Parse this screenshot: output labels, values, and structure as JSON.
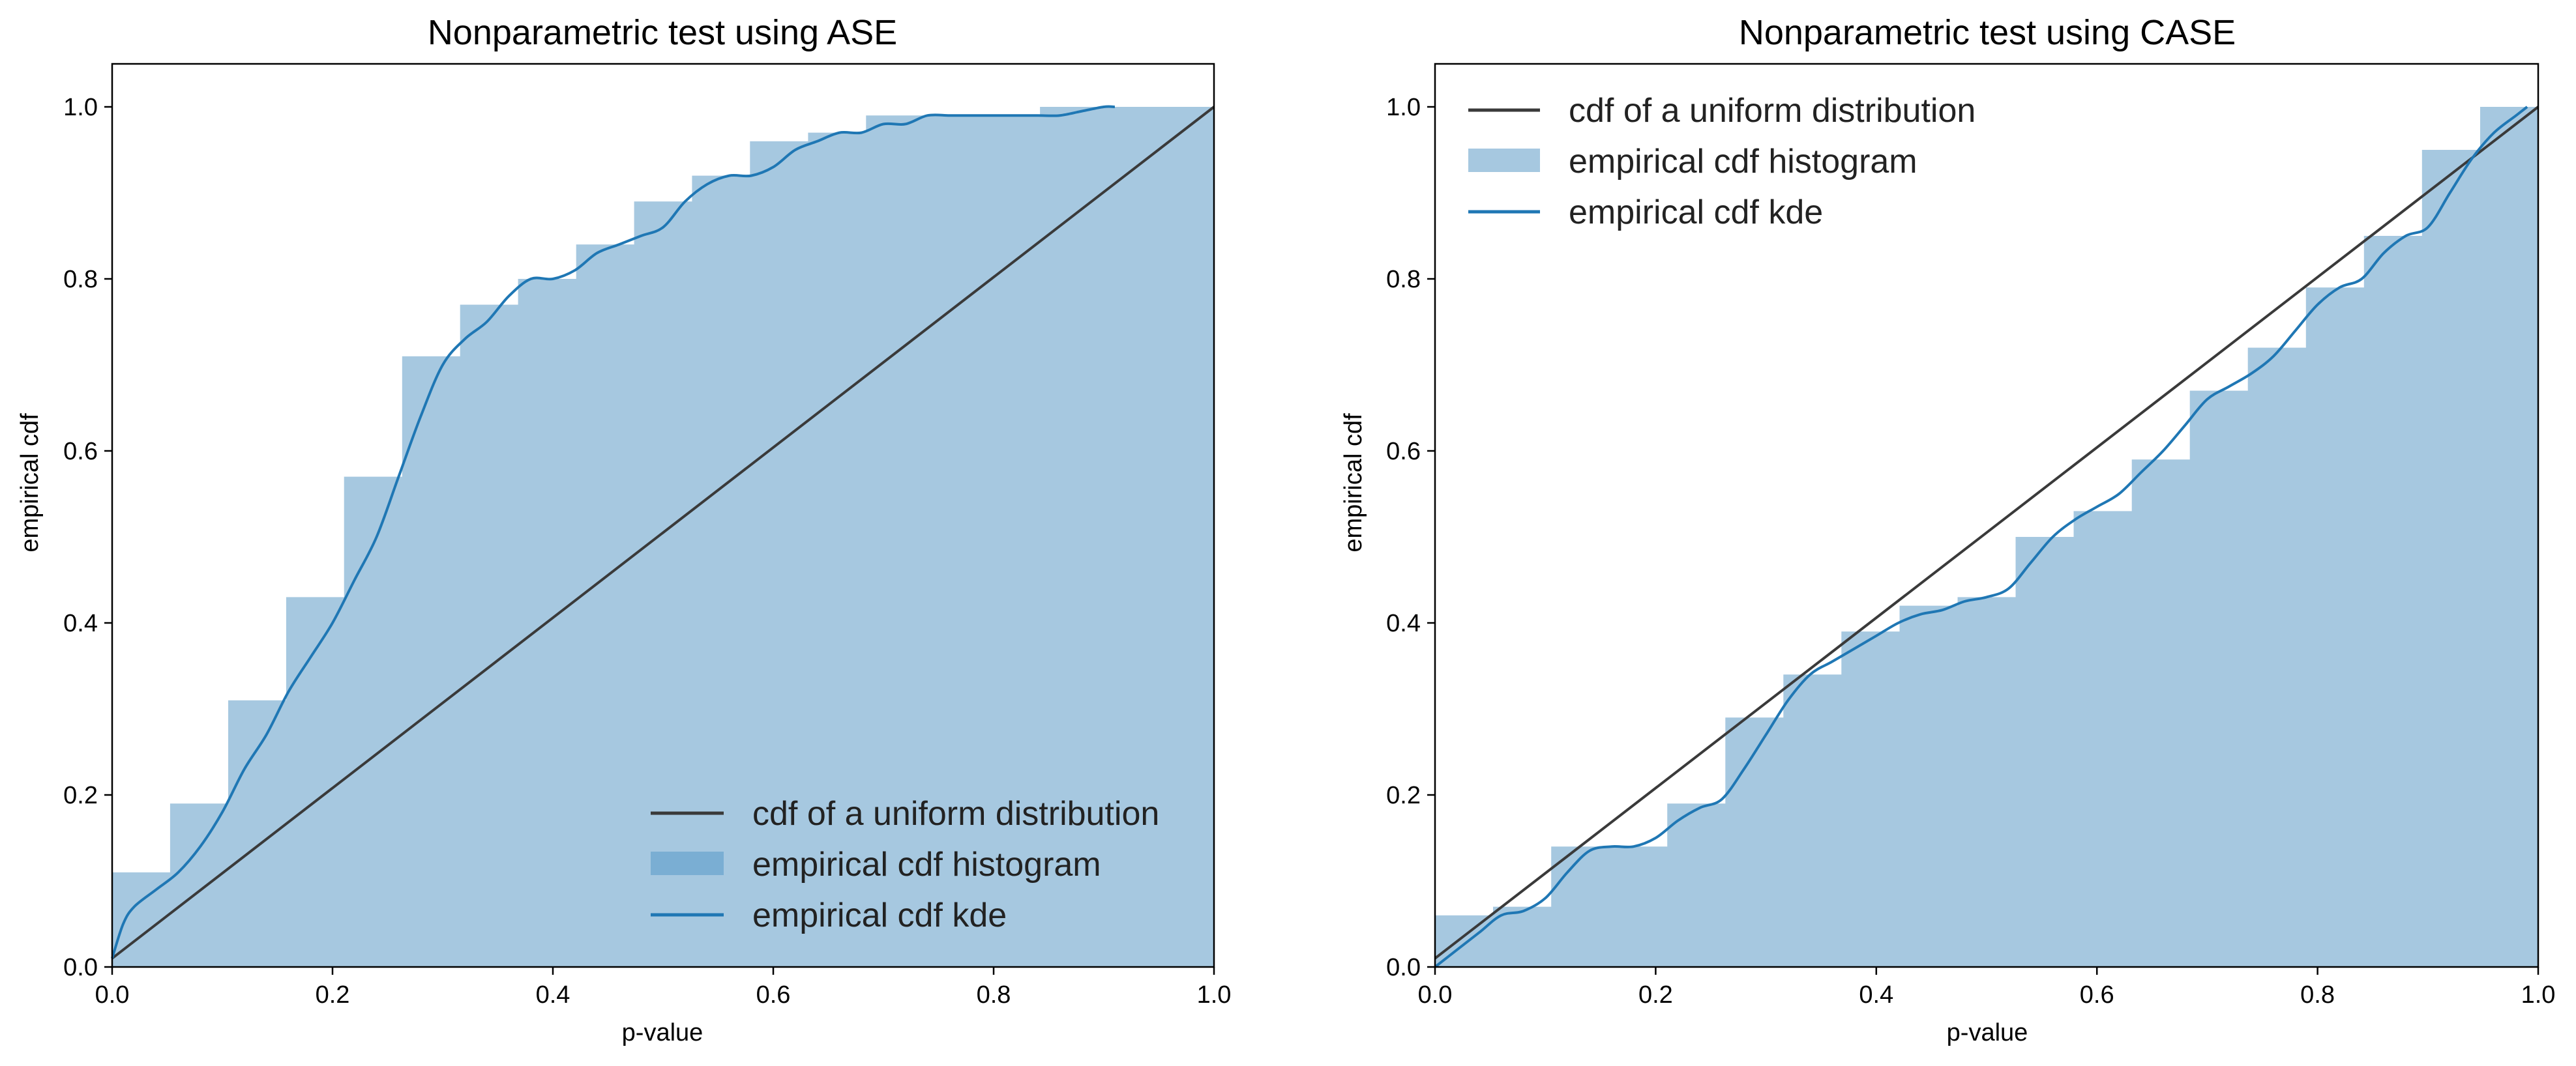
{
  "palette": {
    "hist_fill": "#a6c8e0",
    "hist_legend_patch_left": "#7aaed3",
    "hist_legend_patch_right": "#a6c8e0",
    "kde_line": "#1f77b4",
    "uniform_line": "#3a3a3a"
  },
  "chart_data": [
    {
      "type": "area",
      "title": "Nonparametric test using ASE",
      "xlabel": "p-value",
      "ylabel": "empirical cdf",
      "xlim": [
        0.0,
        1.0
      ],
      "ylim": [
        0.0,
        1.05
      ],
      "xticks": [
        "0.0",
        "0.2",
        "0.4",
        "0.6",
        "0.8",
        "1.0"
      ],
      "yticks": [
        "0.0",
        "0.2",
        "0.4",
        "0.6",
        "0.8",
        "1.0"
      ],
      "legend_position": "lower-right",
      "legend": [
        "cdf of a uniform distribution",
        "empirical cdf histogram",
        "empirical cdf kde"
      ],
      "histogram": {
        "bin_edges": [
          0.0,
          0.0526,
          0.1053,
          0.1579,
          0.2105,
          0.2632,
          0.3158,
          0.3684,
          0.4211,
          0.4737,
          0.5263,
          0.5789,
          0.6316,
          0.6842,
          0.7368,
          0.7895,
          0.8421,
          0.8947,
          0.9474,
          1.0
        ],
        "values": [
          0.11,
          0.19,
          0.31,
          0.43,
          0.57,
          0.71,
          0.77,
          0.8,
          0.84,
          0.89,
          0.92,
          0.96,
          0.97,
          0.99,
          0.99,
          0.99,
          1.0,
          1.0,
          1.0
        ]
      },
      "uniform_cdf": {
        "x": [
          0.0,
          1.0
        ],
        "y": [
          0.01,
          1.0
        ]
      },
      "kde": {
        "x": [
          0.0,
          0.01,
          0.02,
          0.04,
          0.06,
          0.08,
          0.1,
          0.12,
          0.14,
          0.16,
          0.18,
          0.2,
          0.22,
          0.24,
          0.26,
          0.28,
          0.3,
          0.32,
          0.34,
          0.36,
          0.38,
          0.4,
          0.42,
          0.44,
          0.46,
          0.48,
          0.5,
          0.52,
          0.54,
          0.56,
          0.58,
          0.6,
          0.62,
          0.64,
          0.66,
          0.68,
          0.7,
          0.72,
          0.74,
          0.76,
          0.78,
          0.8,
          0.82,
          0.84,
          0.86,
          0.88,
          0.9,
          0.91
        ],
        "y": [
          0.01,
          0.05,
          0.07,
          0.09,
          0.11,
          0.14,
          0.18,
          0.23,
          0.27,
          0.32,
          0.36,
          0.4,
          0.45,
          0.5,
          0.57,
          0.64,
          0.7,
          0.73,
          0.75,
          0.78,
          0.8,
          0.8,
          0.81,
          0.83,
          0.84,
          0.85,
          0.86,
          0.89,
          0.91,
          0.92,
          0.92,
          0.93,
          0.95,
          0.96,
          0.97,
          0.97,
          0.98,
          0.98,
          0.99,
          0.99,
          0.99,
          0.99,
          0.99,
          0.99,
          0.99,
          0.995,
          1.0,
          1.0
        ]
      }
    },
    {
      "type": "area",
      "title": "Nonparametric test using CASE",
      "xlabel": "p-value",
      "ylabel": "empirical cdf",
      "xlim": [
        0.0,
        1.0
      ],
      "ylim": [
        0.0,
        1.05
      ],
      "xticks": [
        "0.0",
        "0.2",
        "0.4",
        "0.6",
        "0.8",
        "1.0"
      ],
      "yticks": [
        "0.0",
        "0.2",
        "0.4",
        "0.6",
        "0.8",
        "1.0"
      ],
      "legend_position": "upper-left",
      "legend": [
        "cdf of a uniform distribution",
        "empirical cdf histogram",
        "empirical cdf kde"
      ],
      "histogram": {
        "bin_edges": [
          0.0,
          0.0526,
          0.1053,
          0.1579,
          0.2105,
          0.2632,
          0.3158,
          0.3684,
          0.4211,
          0.4737,
          0.5263,
          0.5789,
          0.6316,
          0.6842,
          0.7368,
          0.7895,
          0.8421,
          0.8947,
          0.9474,
          1.0
        ],
        "values": [
          0.06,
          0.07,
          0.14,
          0.14,
          0.19,
          0.29,
          0.34,
          0.39,
          0.42,
          0.43,
          0.5,
          0.53,
          0.59,
          0.67,
          0.72,
          0.79,
          0.85,
          0.95,
          1.0
        ]
      },
      "uniform_cdf": {
        "x": [
          0.0,
          1.0
        ],
        "y": [
          0.01,
          1.0
        ]
      },
      "kde": {
        "x": [
          0.0,
          0.02,
          0.04,
          0.06,
          0.08,
          0.1,
          0.12,
          0.14,
          0.16,
          0.18,
          0.2,
          0.22,
          0.24,
          0.26,
          0.28,
          0.3,
          0.32,
          0.34,
          0.36,
          0.38,
          0.4,
          0.42,
          0.44,
          0.46,
          0.48,
          0.5,
          0.52,
          0.54,
          0.56,
          0.58,
          0.6,
          0.62,
          0.64,
          0.66,
          0.68,
          0.7,
          0.72,
          0.74,
          0.76,
          0.78,
          0.8,
          0.82,
          0.84,
          0.86,
          0.88,
          0.9,
          0.92,
          0.94,
          0.96,
          0.98,
          0.99
        ],
        "y": [
          0.0,
          0.02,
          0.04,
          0.06,
          0.065,
          0.08,
          0.11,
          0.135,
          0.14,
          0.14,
          0.15,
          0.17,
          0.185,
          0.195,
          0.23,
          0.27,
          0.31,
          0.34,
          0.355,
          0.37,
          0.385,
          0.4,
          0.41,
          0.415,
          0.425,
          0.43,
          0.44,
          0.47,
          0.5,
          0.52,
          0.535,
          0.55,
          0.575,
          0.6,
          0.63,
          0.66,
          0.675,
          0.69,
          0.71,
          0.74,
          0.77,
          0.79,
          0.8,
          0.83,
          0.85,
          0.86,
          0.9,
          0.94,
          0.97,
          0.99,
          1.0
        ]
      }
    }
  ]
}
